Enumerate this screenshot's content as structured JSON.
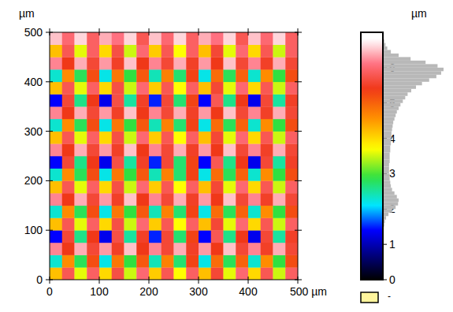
{
  "chart_data": {
    "type": "heatmap",
    "ylabel": "µm",
    "xlim": [
      0,
      500
    ],
    "ylim": [
      0,
      500
    ],
    "xticks": [
      0,
      100,
      200,
      300,
      400,
      {
        "value": 500,
        "label": "500 µm"
      }
    ],
    "yticks": [
      0,
      100,
      200,
      300,
      400,
      500
    ],
    "cells": [
      [
        4.2,
        5.8,
        3.6,
        5.9,
        4.0,
        5.7,
        3.5,
        6.0,
        4.1,
        5.8,
        3.7,
        5.9,
        4.2,
        5.6,
        3.6,
        6.0,
        4.0,
        5.8,
        3.5,
        5.9
      ],
      [
        2.3,
        4.6,
        2.8,
        5.2,
        2.2,
        4.8,
        2.9,
        5.1,
        2.4,
        4.7,
        2.7,
        5.3,
        2.2,
        4.9,
        2.8,
        5.0,
        2.3,
        4.6,
        2.9,
        5.2
      ],
      [
        6.2,
        5.4,
        6.4,
        5.6,
        6.3,
        5.5,
        6.5,
        5.4,
        6.2,
        5.6,
        6.4,
        5.5,
        6.3,
        5.4,
        6.5,
        5.6,
        6.2,
        5.5,
        6.4,
        5.6
      ],
      [
        1.4,
        5.6,
        2.6,
        5.4,
        1.3,
        5.7,
        2.5,
        5.5,
        1.5,
        5.6,
        2.7,
        5.3,
        1.4,
        5.8,
        2.6,
        5.4,
        1.3,
        5.6,
        2.5,
        5.5
      ],
      [
        4.2,
        5.8,
        3.6,
        5.9,
        4.0,
        5.7,
        3.5,
        6.0,
        4.1,
        5.8,
        3.7,
        5.9,
        4.2,
        5.6,
        3.6,
        6.0,
        4.0,
        5.8,
        3.5,
        5.9
      ],
      [
        2.3,
        4.6,
        2.8,
        5.2,
        2.2,
        4.8,
        2.9,
        5.1,
        2.4,
        4.7,
        2.7,
        5.3,
        2.2,
        4.9,
        2.8,
        5.0,
        2.3,
        4.6,
        2.9,
        5.2
      ],
      [
        6.2,
        5.4,
        6.4,
        5.6,
        6.3,
        5.5,
        6.5,
        5.4,
        6.2,
        5.6,
        6.4,
        5.5,
        6.3,
        5.4,
        6.5,
        5.6,
        6.2,
        5.5,
        6.4,
        5.6
      ],
      [
        4.2,
        5.8,
        3.6,
        5.9,
        4.0,
        5.7,
        3.5,
        6.0,
        4.1,
        5.8,
        3.7,
        5.9,
        4.2,
        5.6,
        3.6,
        6.0,
        4.0,
        5.8,
        3.5,
        5.9
      ],
      [
        2.3,
        4.6,
        2.8,
        5.2,
        2.2,
        4.8,
        2.9,
        5.1,
        2.4,
        4.7,
        2.7,
        5.3,
        2.2,
        4.9,
        2.8,
        5.0,
        2.3,
        4.6,
        2.9,
        5.2
      ],
      [
        1.4,
        5.6,
        2.6,
        5.4,
        1.3,
        5.7,
        2.5,
        5.5,
        1.5,
        5.6,
        2.7,
        5.3,
        1.4,
        5.8,
        2.6,
        5.4,
        1.3,
        5.6,
        2.5,
        5.5
      ],
      [
        6.2,
        5.4,
        6.4,
        5.6,
        6.3,
        5.5,
        6.5,
        5.4,
        6.2,
        5.6,
        6.4,
        5.5,
        6.3,
        5.4,
        6.5,
        5.6,
        6.2,
        5.5,
        6.4,
        5.6
      ],
      [
        4.2,
        5.8,
        3.6,
        5.9,
        4.0,
        5.7,
        3.5,
        6.0,
        4.1,
        5.8,
        3.7,
        5.9,
        4.2,
        5.6,
        3.6,
        6.0,
        4.0,
        5.8,
        3.5,
        5.9
      ],
      [
        2.3,
        4.6,
        2.8,
        5.2,
        2.2,
        4.8,
        2.9,
        5.1,
        2.4,
        4.7,
        2.7,
        5.3,
        2.2,
        4.9,
        2.8,
        5.0,
        2.3,
        4.6,
        2.9,
        5.2
      ],
      [
        6.2,
        5.4,
        6.4,
        5.6,
        6.3,
        5.5,
        6.5,
        5.4,
        6.2,
        5.6,
        6.4,
        5.5,
        6.3,
        5.4,
        6.5,
        5.6,
        6.2,
        5.5,
        6.4,
        5.6
      ],
      [
        1.4,
        5.6,
        2.6,
        5.4,
        1.3,
        5.7,
        2.5,
        5.5,
        1.5,
        5.6,
        2.7,
        5.3,
        1.4,
        5.8,
        2.6,
        5.4,
        1.3,
        5.6,
        2.5,
        5.5
      ],
      [
        4.2,
        5.8,
        3.6,
        5.9,
        4.0,
        5.7,
        3.5,
        6.0,
        4.1,
        5.8,
        3.7,
        5.9,
        4.2,
        5.6,
        3.6,
        6.0,
        4.0,
        5.8,
        3.5,
        5.9
      ],
      [
        2.3,
        4.6,
        2.8,
        5.2,
        2.2,
        4.8,
        2.9,
        5.1,
        2.4,
        4.7,
        2.7,
        5.3,
        2.2,
        4.9,
        2.8,
        5.0,
        2.3,
        4.6,
        2.9,
        5.2
      ],
      [
        6.2,
        5.4,
        6.4,
        5.6,
        6.3,
        5.5,
        6.5,
        5.4,
        6.2,
        5.6,
        6.4,
        5.5,
        6.3,
        5.4,
        6.5,
        5.6,
        6.2,
        5.5,
        6.4,
        5.6
      ],
      [
        4.2,
        5.8,
        3.6,
        5.9,
        4.0,
        5.7,
        3.5,
        6.0,
        4.1,
        5.8,
        3.7,
        5.9,
        4.2,
        5.6,
        3.6,
        6.0,
        4.0,
        5.8,
        3.5,
        5.9
      ],
      [
        6.5,
        6.0,
        6.6,
        5.9,
        6.4,
        6.1,
        6.6,
        5.8,
        6.5,
        6.0,
        6.6,
        5.9,
        6.4,
        6.1,
        6.6,
        5.8,
        6.5,
        6.0,
        6.6,
        5.9
      ]
    ],
    "colorbar": {
      "label": "µm",
      "range": [
        0,
        7
      ],
      "ticks": [
        0,
        1,
        2,
        3,
        4,
        5,
        6
      ]
    },
    "histogram": {
      "bins": [
        0,
        0.1,
        0.2,
        0.3,
        0.4,
        0.5,
        0.6,
        0.7,
        0.8,
        0.9,
        1.0,
        1.1,
        1.2,
        1.3,
        1.4,
        1.5,
        1.6,
        1.7,
        1.8,
        1.9,
        2.0,
        2.1,
        2.2,
        2.3,
        2.4,
        2.5,
        2.6,
        2.7,
        2.8,
        2.9,
        3.0,
        3.1,
        3.2,
        3.3,
        3.4,
        3.5,
        3.6,
        3.7,
        3.8,
        3.9,
        4.0,
        4.1,
        4.2,
        4.3,
        4.4,
        4.5,
        4.6,
        4.7,
        4.8,
        4.9,
        5.0,
        5.1,
        5.2,
        5.3,
        5.4,
        5.5,
        5.6,
        5.7,
        5.8,
        5.9,
        6.0,
        6.1,
        6.2,
        6.3,
        6.4,
        6.5,
        6.6,
        6.7,
        6.8,
        6.9,
        7.0
      ],
      "counts": [
        0,
        0,
        0,
        0,
        0,
        0,
        0,
        0,
        0,
        0,
        0,
        0,
        0,
        0,
        0,
        1,
        2,
        4,
        8,
        14,
        20,
        24,
        25,
        22,
        18,
        14,
        12,
        11,
        10,
        10,
        9,
        9,
        9,
        10,
        10,
        10,
        11,
        11,
        12,
        12,
        13,
        13,
        14,
        15,
        16,
        18,
        20,
        22,
        25,
        28,
        32,
        36,
        40,
        46,
        54,
        64,
        76,
        88,
        96,
        100,
        90,
        70,
        45,
        25,
        12,
        6,
        3,
        1,
        0,
        0
      ]
    },
    "mask": {
      "color": "#fff59d",
      "label": "-"
    }
  }
}
